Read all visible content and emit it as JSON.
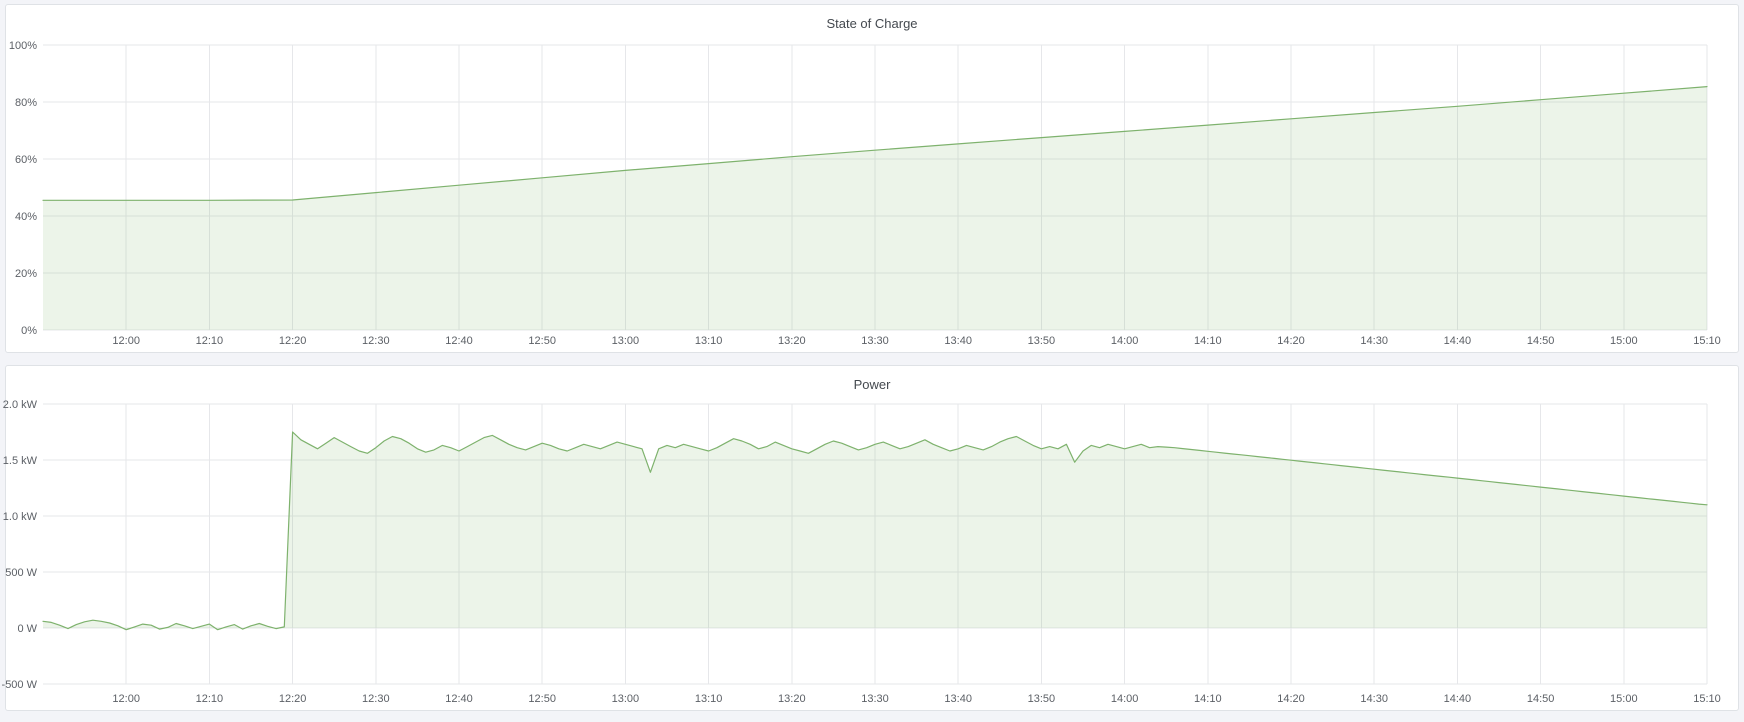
{
  "chart_data": [
    {
      "type": "area",
      "title": "State of Charge",
      "xlabel": "",
      "ylabel": "",
      "grid": true,
      "legend": "none",
      "xlim_minutes": [
        710,
        910
      ],
      "ylim": [
        0,
        100
      ],
      "baseline": 0,
      "y_ticks": {
        "values": [
          0,
          20,
          40,
          60,
          80,
          100
        ],
        "labels": [
          "0%",
          "20%",
          "40%",
          "60%",
          "80%",
          "100%"
        ]
      },
      "x_ticks": {
        "minutes": [
          720,
          730,
          740,
          750,
          760,
          770,
          780,
          790,
          800,
          810,
          820,
          830,
          840,
          850,
          860,
          870,
          880,
          890,
          900,
          910
        ],
        "labels": [
          "12:00",
          "12:10",
          "12:20",
          "12:30",
          "12:40",
          "12:50",
          "13:00",
          "13:10",
          "13:20",
          "13:30",
          "13:40",
          "13:50",
          "14:00",
          "14:10",
          "14:20",
          "14:30",
          "14:40",
          "14:50",
          "15:00",
          "15:10"
        ]
      },
      "series": [
        {
          "name": "State of Charge",
          "unit": "%",
          "color": "#7EB26D",
          "fill": "rgba(126,178,109,0.15)",
          "points": [
            [
              710,
              45.5
            ],
            [
              720,
              45.5
            ],
            [
              730,
              45.5
            ],
            [
              740,
              45.6
            ],
            [
              750,
              48.2
            ],
            [
              760,
              50.8
            ],
            [
              770,
              53.4
            ],
            [
              780,
              56.0
            ],
            [
              790,
              58.4
            ],
            [
              800,
              60.8
            ],
            [
              810,
              63.1
            ],
            [
              820,
              65.3
            ],
            [
              830,
              67.5
            ],
            [
              840,
              69.7
            ],
            [
              850,
              71.9
            ],
            [
              860,
              74.1
            ],
            [
              870,
              76.3
            ],
            [
              880,
              78.5
            ],
            [
              890,
              80.8
            ],
            [
              900,
              83.1
            ],
            [
              910,
              85.4
            ]
          ]
        }
      ]
    },
    {
      "type": "area",
      "title": "Power",
      "xlabel": "",
      "ylabel": "",
      "grid": true,
      "legend": "none",
      "xlim_minutes": [
        710,
        910
      ],
      "ylim": [
        -500,
        2000
      ],
      "baseline": 0,
      "y_ticks": {
        "values": [
          -500,
          0,
          500,
          1000,
          1500,
          2000
        ],
        "labels": [
          "-500 W",
          "0 W",
          "500 W",
          "1.0 kW",
          "1.5 kW",
          "2.0 kW"
        ]
      },
      "x_ticks": {
        "minutes": [
          720,
          730,
          740,
          750,
          760,
          770,
          780,
          790,
          800,
          810,
          820,
          830,
          840,
          850,
          860,
          870,
          880,
          890,
          900,
          910
        ],
        "labels": [
          "12:00",
          "12:10",
          "12:20",
          "12:30",
          "12:40",
          "12:50",
          "13:00",
          "13:10",
          "13:20",
          "13:30",
          "13:40",
          "13:50",
          "14:00",
          "14:10",
          "14:20",
          "14:30",
          "14:40",
          "14:50",
          "15:00",
          "15:10"
        ]
      },
      "series": [
        {
          "name": "Power",
          "unit": "W",
          "color": "#7EB26D",
          "fill": "rgba(126,178,109,0.15)",
          "start_min": 710,
          "step_min": 1,
          "values": [
            60,
            50,
            25,
            -5,
            30,
            55,
            70,
            60,
            45,
            20,
            -15,
            10,
            35,
            25,
            -10,
            5,
            40,
            20,
            -5,
            15,
            35,
            -15,
            10,
            30,
            -10,
            20,
            40,
            15,
            -5,
            10,
            1750,
            1680,
            1640,
            1600,
            1650,
            1700,
            1660,
            1620,
            1580,
            1560,
            1610,
            1670,
            1710,
            1690,
            1650,
            1600,
            1570,
            1590,
            1630,
            1610,
            1580,
            1620,
            1660,
            1700,
            1720,
            1680,
            1640,
            1610,
            1590,
            1620,
            1650,
            1630,
            1600,
            1580,
            1610,
            1640,
            1620,
            1600,
            1630,
            1660,
            1640,
            1620,
            1600,
            1390,
            1600,
            1630,
            1610,
            1640,
            1620,
            1600,
            1580,
            1610,
            1650,
            1690,
            1670,
            1640,
            1600,
            1620,
            1660,
            1630,
            1600,
            1580,
            1560,
            1600,
            1640,
            1670,
            1650,
            1620,
            1590,
            1610,
            1640,
            1660,
            1630,
            1600,
            1620,
            1650,
            1680,
            1640,
            1610,
            1580,
            1600,
            1630,
            1610,
            1590,
            1620,
            1660,
            1690,
            1710,
            1670,
            1630,
            1600,
            1620,
            1600,
            1640,
            1480,
            1580,
            1630,
            1610,
            1640,
            1620,
            1600,
            1620,
            1640,
            1610,
            1620,
            1615,
            1610,
            1602,
            1594,
            1586,
            1578,
            1570,
            1562,
            1554,
            1546,
            1538,
            1530,
            1522,
            1514,
            1506,
            1498,
            1490,
            1482,
            1474,
            1466,
            1458,
            1450,
            1442,
            1434,
            1426,
            1418,
            1410,
            1402,
            1394,
            1386,
            1378,
            1370,
            1362,
            1354,
            1346,
            1338,
            1330,
            1322,
            1314,
            1306,
            1298,
            1290,
            1282,
            1274,
            1266,
            1258,
            1250,
            1242,
            1234,
            1226,
            1218,
            1210,
            1202,
            1194,
            1186,
            1178,
            1170,
            1162,
            1154,
            1146,
            1138,
            1130,
            1122,
            1114,
            1106,
            1100
          ]
        }
      ]
    }
  ]
}
